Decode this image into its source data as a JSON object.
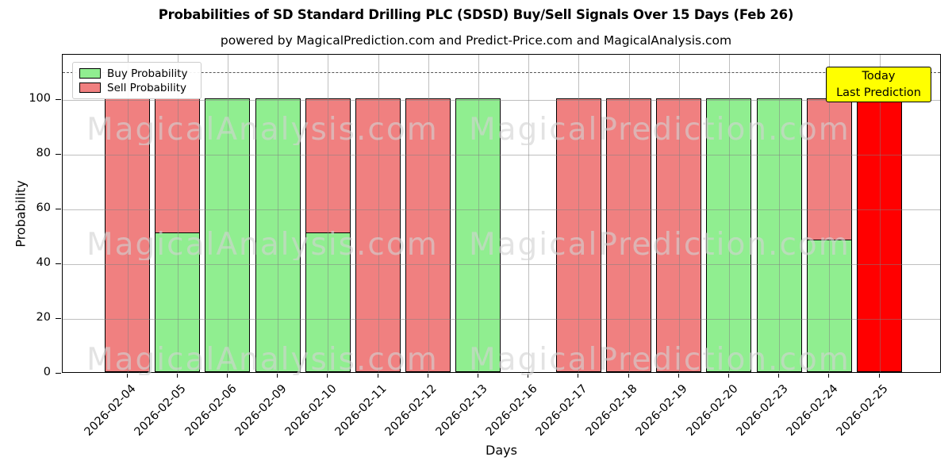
{
  "header": {
    "title": "Probabilities of SD Standard Drilling PLC (SDSD) Buy/Sell Signals Over 15 Days (Feb 26)",
    "subtitle": "powered by MagicalPrediction.com and Predict-Price.com and MagicalAnalysis.com"
  },
  "chart_data": {
    "type": "bar",
    "stacked": true,
    "title": "Probabilities of SD Standard Drilling PLC (SDSD) Buy/Sell Signals Over 15 Days (Feb 26)",
    "subtitle": "powered by MagicalPrediction.com and Predict-Price.com and MagicalAnalysis.com",
    "xlabel": "Days",
    "ylabel": "Probability",
    "ylim": [
      0,
      116.5
    ],
    "yticks": [
      0,
      20,
      40,
      60,
      80,
      100
    ],
    "grid": true,
    "legend_position": "upper-left",
    "reference_line": {
      "value": 110,
      "style": "dashed",
      "color": "#555555"
    },
    "categories": [
      "2026-02-04",
      "2026-02-05",
      "2026-02-06",
      "2026-02-09",
      "2026-02-10",
      "2026-02-11",
      "2026-02-12",
      "2026-02-13",
      "2026-02-16",
      "2026-02-17",
      "2026-02-18",
      "2026-02-19",
      "2026-02-20",
      "2026-02-23",
      "2026-02-24",
      "2026-02-25"
    ],
    "series": [
      {
        "name": "Buy Probability",
        "color": "#90ee90",
        "values": [
          0,
          51,
          100,
          100,
          51,
          0,
          0,
          100,
          null,
          0,
          0,
          0,
          100,
          100,
          48.5,
          null
        ]
      },
      {
        "name": "Sell Probability",
        "color": "#f08080",
        "values": [
          100,
          49,
          0,
          0,
          49,
          100,
          100,
          0,
          null,
          100,
          100,
          100,
          0,
          0,
          51.5,
          null
        ]
      },
      {
        "name": "Today Last Prediction",
        "color": "#ff0000",
        "in_legend": false,
        "values": [
          null,
          null,
          null,
          null,
          null,
          null,
          null,
          null,
          null,
          null,
          null,
          null,
          null,
          null,
          null,
          100
        ]
      }
    ]
  },
  "legend": {
    "items": [
      {
        "label": "Buy Probability",
        "color": "#90ee90"
      },
      {
        "label": "Sell Probability",
        "color": "#f08080"
      }
    ]
  },
  "annotation": {
    "line1": "Today",
    "line2": "Last Prediction",
    "bg_color": "#ffff00"
  },
  "watermarks": {
    "left_text": "MagicalAnalysis.com",
    "right_text": "MagicalPrediction.com"
  },
  "colors": {
    "buy": "#90ee90",
    "sell": "#f08080",
    "today_bar": "#ff0000",
    "annotation_bg": "#ffff00"
  }
}
